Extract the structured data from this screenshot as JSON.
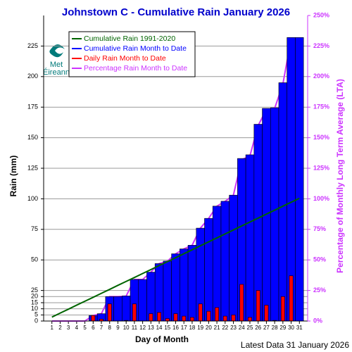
{
  "chart_data": {
    "type": "bar",
    "title": "Johnstown C - Cumulative Rain January   2026",
    "xlabel": "Day of Month",
    "ylabel": "Rain (mm)",
    "y2label": "Percentage  of Monthly Long Term Average (LTA)",
    "footer": "Latest Data 31 January 2026",
    "logo": [
      "Met",
      "Éireann"
    ],
    "x": [
      1,
      2,
      3,
      4,
      5,
      6,
      7,
      8,
      9,
      10,
      11,
      12,
      13,
      14,
      15,
      16,
      17,
      18,
      19,
      20,
      21,
      22,
      23,
      24,
      25,
      26,
      27,
      28,
      29,
      30,
      31
    ],
    "xlim": [
      0,
      32
    ],
    "xticks": [
      1,
      2,
      3,
      4,
      5,
      6,
      7,
      8,
      9,
      10,
      11,
      12,
      13,
      14,
      15,
      16,
      17,
      18,
      19,
      20,
      21,
      22,
      23,
      24,
      25,
      26,
      27,
      28,
      29,
      30,
      31
    ],
    "ylim": [
      0,
      250
    ],
    "yticks": [
      0,
      5,
      10,
      15,
      20,
      25,
      50,
      75,
      100,
      125,
      150,
      175,
      200,
      225
    ],
    "y2lim": [
      0,
      250
    ],
    "y2ticks": [
      {
        "value": 0,
        "label": "0%"
      },
      {
        "value": 25,
        "label": "25%"
      },
      {
        "value": 50,
        "label": "50%"
      },
      {
        "value": 75,
        "label": "75%"
      },
      {
        "value": 100,
        "label": "100%"
      },
      {
        "value": 125,
        "label": "125%"
      },
      {
        "value": 150,
        "label": "150%"
      },
      {
        "value": 175,
        "label": "175%"
      },
      {
        "value": 200,
        "label": "200%"
      },
      {
        "value": 225,
        "label": "225%"
      },
      {
        "value": 250,
        "label": "250%"
      }
    ],
    "grid": true,
    "series": [
      {
        "name": "Cumulative Rain 1991-2020",
        "type": "line",
        "color": "#006400",
        "values": [
          3.2,
          6.5,
          9.7,
          13.0,
          16.2,
          19.4,
          22.7,
          25.9,
          29.2,
          32.4,
          35.6,
          38.9,
          42.1,
          45.4,
          48.6,
          51.8,
          55.1,
          58.3,
          61.6,
          64.8,
          68.0,
          71.3,
          74.5,
          77.8,
          81.0,
          84.2,
          87.5,
          90.7,
          94.0,
          97.2,
          100.4
        ]
      },
      {
        "name": "Cumulative Rain Month to Date",
        "type": "bar",
        "color": "#0000ff",
        "values": [
          0,
          0,
          0,
          0,
          0,
          4.5,
          6,
          20,
          20,
          20.5,
          34,
          34,
          40,
          47,
          49,
          55,
          59,
          62,
          76,
          84,
          94,
          98,
          103,
          133,
          136,
          161,
          174,
          174.5,
          195,
          232,
          232
        ]
      },
      {
        "name": "Daily Rain Month to Date",
        "type": "bar",
        "color": "#ff0000",
        "values": [
          0,
          0,
          0,
          0,
          0,
          4.5,
          1.5,
          14,
          0,
          0.5,
          14,
          0,
          6,
          7,
          2,
          6,
          4,
          3,
          14,
          8,
          11,
          4,
          5,
          30,
          3,
          25,
          13,
          0.5,
          20,
          37,
          0
        ]
      },
      {
        "name": "Percentage Rain Month to Date",
        "type": "line",
        "axis": "y2",
        "color": "#cc33ff",
        "values": [
          0,
          0,
          0,
          0,
          0,
          4.5,
          6,
          20,
          20,
          20.4,
          34,
          34,
          40,
          47,
          49,
          55,
          59,
          62,
          76,
          84,
          94,
          98,
          103,
          132,
          135,
          160,
          173,
          174,
          194,
          231,
          231
        ]
      }
    ]
  }
}
